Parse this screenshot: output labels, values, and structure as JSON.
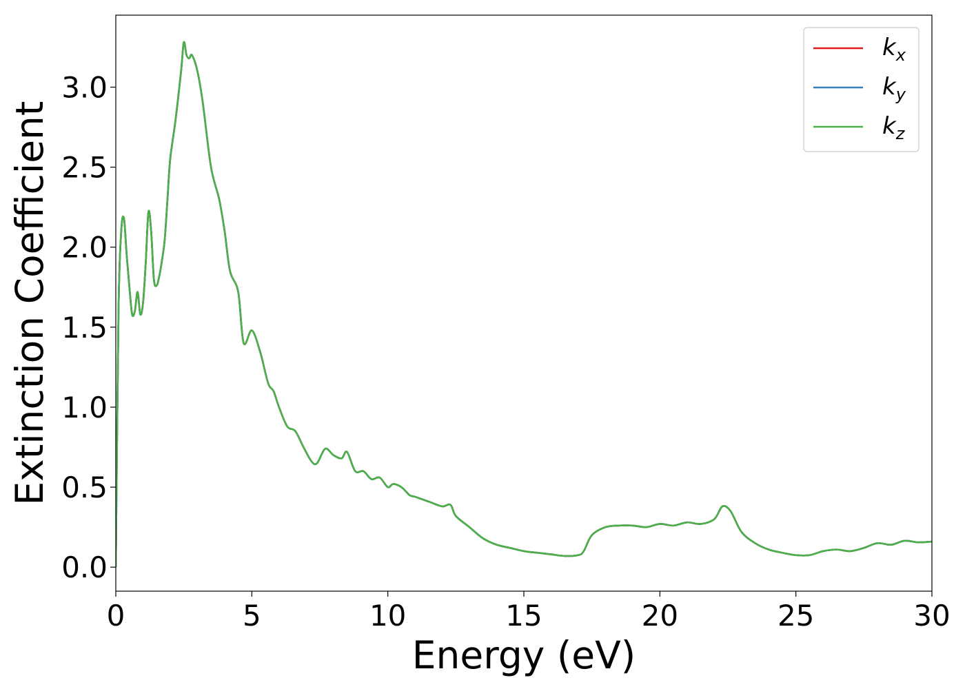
{
  "chart_data": {
    "type": "line",
    "title": "",
    "xlabel": "Energy (eV)",
    "ylabel": "Extinction Coefficient",
    "xlim": [
      0,
      30
    ],
    "ylim": [
      -0.15,
      3.45
    ],
    "xticks": [
      0,
      5,
      10,
      15,
      20,
      25,
      30
    ],
    "xtick_labels": [
      "0",
      "5",
      "10",
      "15",
      "20",
      "25",
      "30"
    ],
    "yticks": [
      0.0,
      0.5,
      1.0,
      1.5,
      2.0,
      2.5,
      3.0
    ],
    "ytick_labels": [
      "0.0",
      "0.5",
      "1.0",
      "1.5",
      "2.0",
      "2.5",
      "3.0"
    ],
    "grid": false,
    "legend": "top-right",
    "x": [
      0,
      0.1,
      0.2,
      0.3,
      0.4,
      0.5,
      0.6,
      0.7,
      0.8,
      0.9,
      1.0,
      1.1,
      1.2,
      1.3,
      1.4,
      1.5,
      1.6,
      1.7,
      1.8,
      1.9,
      2.0,
      2.2,
      2.4,
      2.5,
      2.6,
      2.7,
      2.8,
      3.0,
      3.2,
      3.5,
      3.8,
      4.0,
      4.2,
      4.5,
      4.7,
      5.0,
      5.3,
      5.6,
      5.8,
      6.0,
      6.3,
      6.6,
      6.9,
      7.2,
      7.4,
      7.7,
      8.0,
      8.3,
      8.5,
      8.8,
      9.1,
      9.4,
      9.7,
      10.0,
      10.2,
      10.5,
      10.8,
      11.0,
      11.5,
      12.0,
      12.3,
      12.5,
      13.0,
      13.5,
      14.0,
      14.5,
      15.0,
      15.5,
      16.0,
      16.5,
      17.0,
      17.2,
      17.5,
      18.0,
      18.5,
      19.0,
      19.5,
      20.0,
      20.5,
      21.0,
      21.5,
      22.0,
      22.3,
      22.6,
      23.0,
      23.5,
      24.0,
      24.5,
      25.0,
      25.5,
      26.0,
      26.5,
      27.0,
      27.5,
      28.0,
      28.5,
      29.0,
      29.5,
      30.0
    ],
    "series": [
      {
        "name": "k_x",
        "color": "#e41a1c",
        "values": [
          0.0,
          1.6,
          2.1,
          2.18,
          1.95,
          1.75,
          1.58,
          1.6,
          1.72,
          1.58,
          1.65,
          1.9,
          2.22,
          2.1,
          1.8,
          1.76,
          1.82,
          1.92,
          2.05,
          2.3,
          2.55,
          2.8,
          3.1,
          3.28,
          3.2,
          3.18,
          3.2,
          3.1,
          2.9,
          2.5,
          2.3,
          2.1,
          1.85,
          1.72,
          1.4,
          1.48,
          1.35,
          1.15,
          1.1,
          1.0,
          0.88,
          0.85,
          0.75,
          0.66,
          0.65,
          0.74,
          0.7,
          0.68,
          0.72,
          0.6,
          0.6,
          0.55,
          0.56,
          0.5,
          0.52,
          0.5,
          0.45,
          0.44,
          0.41,
          0.38,
          0.39,
          0.32,
          0.25,
          0.18,
          0.14,
          0.12,
          0.1,
          0.09,
          0.08,
          0.07,
          0.075,
          0.1,
          0.2,
          0.25,
          0.26,
          0.26,
          0.25,
          0.27,
          0.26,
          0.28,
          0.27,
          0.3,
          0.38,
          0.35,
          0.22,
          0.15,
          0.11,
          0.09,
          0.075,
          0.075,
          0.1,
          0.11,
          0.1,
          0.12,
          0.15,
          0.14,
          0.165,
          0.155,
          0.16
        ]
      },
      {
        "name": "k_y",
        "color": "#377eb8",
        "values": [
          0.0,
          1.6,
          2.1,
          2.18,
          1.95,
          1.75,
          1.58,
          1.6,
          1.72,
          1.58,
          1.65,
          1.9,
          2.22,
          2.1,
          1.8,
          1.76,
          1.82,
          1.92,
          2.05,
          2.3,
          2.55,
          2.8,
          3.1,
          3.28,
          3.2,
          3.18,
          3.2,
          3.1,
          2.9,
          2.5,
          2.3,
          2.1,
          1.85,
          1.72,
          1.4,
          1.48,
          1.35,
          1.15,
          1.1,
          1.0,
          0.88,
          0.85,
          0.75,
          0.66,
          0.65,
          0.74,
          0.7,
          0.68,
          0.72,
          0.6,
          0.6,
          0.55,
          0.56,
          0.5,
          0.52,
          0.5,
          0.45,
          0.44,
          0.41,
          0.38,
          0.39,
          0.32,
          0.25,
          0.18,
          0.14,
          0.12,
          0.1,
          0.09,
          0.08,
          0.07,
          0.075,
          0.1,
          0.2,
          0.25,
          0.26,
          0.26,
          0.25,
          0.27,
          0.26,
          0.28,
          0.27,
          0.3,
          0.38,
          0.35,
          0.22,
          0.15,
          0.11,
          0.09,
          0.075,
          0.075,
          0.1,
          0.11,
          0.1,
          0.12,
          0.15,
          0.14,
          0.165,
          0.155,
          0.16
        ]
      },
      {
        "name": "k_z",
        "color": "#4daf4a",
        "values": [
          0.0,
          1.6,
          2.1,
          2.18,
          1.95,
          1.75,
          1.58,
          1.6,
          1.72,
          1.58,
          1.65,
          1.9,
          2.22,
          2.1,
          1.8,
          1.76,
          1.82,
          1.92,
          2.05,
          2.3,
          2.55,
          2.8,
          3.1,
          3.28,
          3.2,
          3.18,
          3.2,
          3.1,
          2.9,
          2.5,
          2.3,
          2.1,
          1.85,
          1.72,
          1.4,
          1.48,
          1.35,
          1.15,
          1.1,
          1.0,
          0.88,
          0.85,
          0.75,
          0.66,
          0.65,
          0.74,
          0.7,
          0.68,
          0.72,
          0.6,
          0.6,
          0.55,
          0.56,
          0.5,
          0.52,
          0.5,
          0.45,
          0.44,
          0.41,
          0.38,
          0.39,
          0.32,
          0.25,
          0.18,
          0.14,
          0.12,
          0.1,
          0.09,
          0.08,
          0.07,
          0.075,
          0.1,
          0.2,
          0.25,
          0.26,
          0.26,
          0.25,
          0.27,
          0.26,
          0.28,
          0.27,
          0.3,
          0.38,
          0.35,
          0.22,
          0.15,
          0.11,
          0.09,
          0.075,
          0.075,
          0.1,
          0.11,
          0.1,
          0.12,
          0.15,
          0.14,
          0.165,
          0.155,
          0.16
        ]
      }
    ],
    "legend_entries": [
      {
        "base": "k",
        "sub": "x",
        "color": "#e41a1c"
      },
      {
        "base": "k",
        "sub": "y",
        "color": "#377eb8"
      },
      {
        "base": "k",
        "sub": "z",
        "color": "#4daf4a"
      }
    ]
  }
}
